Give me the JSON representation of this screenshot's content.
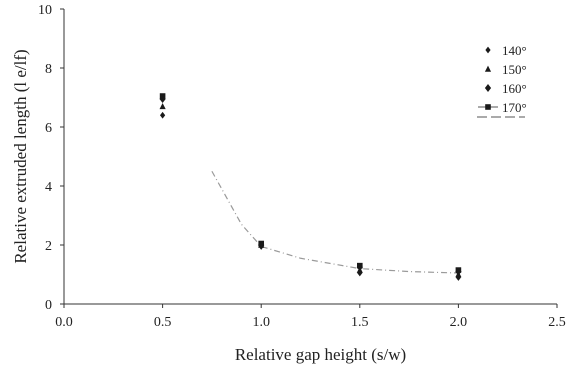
{
  "chart_data": {
    "type": "scatter",
    "xlabel": "Relative gap height (s/w)",
    "ylabel": "Relative extruded length (l e/lf)",
    "xlim": [
      0.0,
      2.5
    ],
    "ylim": [
      0,
      10
    ],
    "xticks": [
      0.0,
      0.5,
      1.0,
      1.5,
      2.0,
      2.5
    ],
    "yticks": [
      0,
      2,
      4,
      6,
      8,
      10
    ],
    "xtick_labels": [
      "0.0",
      "0.5",
      "1.0",
      "1.5",
      "2.0",
      "2.5"
    ],
    "ytick_labels": [
      "0",
      "2",
      "4",
      "6",
      "8",
      "10"
    ],
    "grid": false,
    "legend_position": "top-right",
    "series": [
      {
        "name": "140°",
        "marker": "diamond",
        "x": [
          0.5,
          1.0,
          1.5,
          2.0
        ],
        "y": [
          6.4,
          1.95,
          1.05,
          0.9
        ]
      },
      {
        "name": "150°",
        "marker": "triangle",
        "x": [
          0.5,
          1.0,
          1.5,
          2.0
        ],
        "y": [
          6.7,
          2.0,
          1.15,
          1.0
        ]
      },
      {
        "name": "160°",
        "marker": "diamond",
        "x": [
          0.5,
          1.0,
          1.5,
          2.0
        ],
        "y": [
          6.95,
          2.0,
          1.25,
          1.1
        ]
      },
      {
        "name": "170°",
        "marker": "square",
        "x": [
          0.5,
          1.0,
          1.5,
          2.0
        ],
        "y": [
          7.05,
          2.05,
          1.3,
          1.15
        ]
      }
    ],
    "trend_line": {
      "x": [
        0.75,
        0.9,
        1.0,
        1.2,
        1.5,
        1.75,
        2.0
      ],
      "y": [
        4.5,
        2.7,
        1.95,
        1.55,
        1.2,
        1.1,
        1.05
      ]
    },
    "colors": {
      "marker": "#1a1a1a",
      "axis": "#333333",
      "trend": "#9a9a9a"
    }
  }
}
